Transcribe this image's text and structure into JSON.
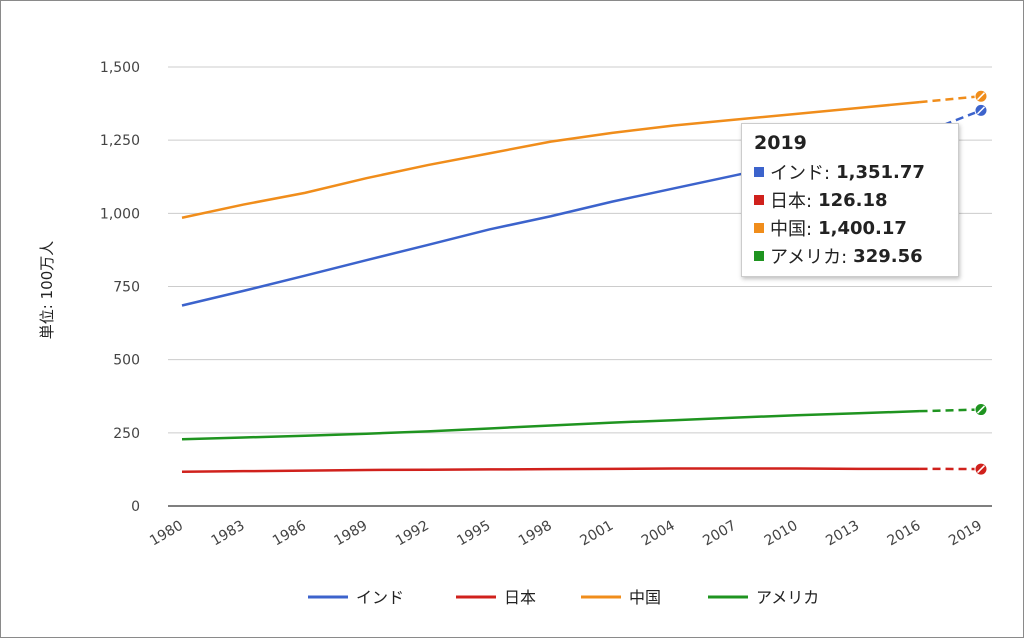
{
  "chart_data": {
    "type": "line",
    "ylabel": "単位: 100万人",
    "xlabel": "",
    "ylim": [
      0,
      1500
    ],
    "yticks": [
      0,
      250,
      500,
      750,
      1000,
      1250,
      1500
    ],
    "ytick_labels": [
      "0",
      "250",
      "500",
      "750",
      "1,000",
      "1,250",
      "1,500"
    ],
    "x": [
      1980,
      1983,
      1986,
      1989,
      1992,
      1995,
      1998,
      2001,
      2004,
      2007,
      2010,
      2013,
      2016,
      2019
    ],
    "xtick_labels": [
      "1980",
      "1983",
      "1986",
      "1989",
      "1992",
      "1995",
      "1998",
      "2001",
      "2004",
      "2007",
      "2010",
      "2013",
      "2016",
      "2019"
    ],
    "grid": true,
    "legend": "bottom",
    "series": [
      {
        "name": "インド",
        "color": "#3c63cc",
        "values": [
          685,
          735,
          787,
          840,
          892,
          945,
          990,
          1040,
          1085,
          1130,
          1175,
          1220,
          1270,
          1351.77
        ]
      },
      {
        "name": "日本",
        "color": "#d0211c",
        "values": [
          117,
          119,
          121,
          123,
          124,
          125,
          126,
          127,
          128,
          128,
          128,
          127,
          127,
          126.18
        ]
      },
      {
        "name": "中国",
        "color": "#f08d1b",
        "values": [
          985,
          1030,
          1070,
          1120,
          1165,
          1205,
          1245,
          1275,
          1300,
          1320,
          1340,
          1360,
          1380,
          1400.17
        ]
      },
      {
        "name": "アメリカ",
        "color": "#1f9420",
        "values": [
          228,
          234,
          240,
          247,
          255,
          265,
          275,
          285,
          293,
          302,
          310,
          317,
          324,
          329.56
        ]
      }
    ],
    "tooltip": {
      "title": "2019",
      "rows": [
        {
          "label": "インド:",
          "value": "1,351.77",
          "color": "#3c63cc"
        },
        {
          "label": "日本:",
          "value": "126.18",
          "color": "#d0211c"
        },
        {
          "label": "中国:",
          "value": "1,400.17",
          "color": "#f08d1b"
        },
        {
          "label": "アメリカ:",
          "value": "329.56",
          "color": "#1f9420"
        }
      ]
    }
  }
}
